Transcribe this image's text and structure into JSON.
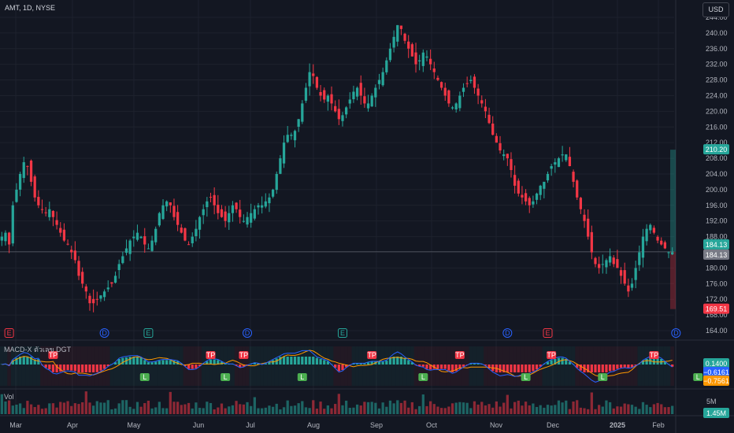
{
  "header": {
    "symbol_line": "AMT, 1D, NYSE",
    "currency": "USD"
  },
  "indicators": {
    "macd_label": "MACD-X ตัวเลข DGT",
    "volume_label": "Vol"
  },
  "colors": {
    "up": "#26a69a",
    "down": "#f23645",
    "bg": "#131722",
    "grid": "#1e222d",
    "macd": "#2962ff",
    "signal": "#ff9800"
  },
  "chart_data": {
    "type": "candlestick",
    "title": "",
    "price_axis": {
      "ylim": [
        164,
        246
      ],
      "ticks": [
        "244.00",
        "240.00",
        "236.00",
        "232.00",
        "228.00",
        "224.00",
        "220.00",
        "216.00",
        "212.00",
        "208.00",
        "204.00",
        "200.00",
        "196.00",
        "192.00",
        "188.00",
        "184.00",
        "180.00",
        "176.00",
        "172.00",
        "168.00",
        "164.00"
      ]
    },
    "x_ticks": [
      "Mar",
      "Apr",
      "May",
      "Jun",
      "Jul",
      "Aug",
      "Sep",
      "Oct",
      "Nov",
      "Dec",
      "2025",
      "Feb"
    ],
    "price_labels": [
      {
        "value": 210.2,
        "text": "210.20",
        "color": "#26a69a"
      },
      {
        "value": 184.13,
        "text": "184.13",
        "color": "#26a69a"
      },
      {
        "value": 184.13,
        "text": "184.13",
        "color": "#787b86"
      },
      {
        "value": 169.51,
        "text": "169.51",
        "color": "#f23645"
      }
    ],
    "position_box": {
      "entry": 184.13,
      "target": 210.2,
      "stop": 169.51
    },
    "close_path": [
      188,
      189,
      186,
      196,
      200,
      204,
      207,
      206,
      202,
      198,
      196,
      195,
      194,
      195,
      193,
      191,
      189,
      187,
      186,
      184,
      182,
      178,
      176,
      174,
      171,
      171,
      172,
      173,
      174,
      175,
      176,
      178,
      181,
      183,
      185,
      187,
      188,
      189,
      188,
      186,
      185,
      187,
      190,
      194,
      196,
      197,
      196,
      193,
      191,
      189,
      187,
      186,
      188,
      190,
      193,
      195,
      197,
      198,
      196,
      194,
      193,
      192,
      194,
      196,
      195,
      193,
      192,
      193,
      194,
      195,
      196,
      196,
      197,
      198,
      200,
      204,
      208,
      212,
      214,
      214,
      215,
      218,
      222,
      226,
      230,
      229,
      226,
      224,
      223,
      224,
      222,
      220,
      218,
      219,
      221,
      223,
      225,
      226,
      224,
      222,
      222,
      224,
      226,
      228,
      230,
      233,
      236,
      239,
      242,
      241,
      238,
      236,
      234,
      232,
      233,
      235,
      234,
      232,
      230,
      228,
      226,
      224,
      222,
      221,
      222,
      224,
      226,
      227,
      228,
      226,
      224,
      222,
      220,
      217,
      214,
      212,
      210,
      209,
      208,
      205,
      201,
      199,
      198,
      197,
      196,
      197,
      199,
      201,
      202,
      204,
      206,
      207,
      208,
      209,
      209,
      206,
      202,
      198,
      195,
      192,
      188,
      184,
      181,
      180,
      181,
      182,
      183,
      181,
      180,
      178,
      176,
      174,
      176,
      180,
      184,
      188,
      190,
      191,
      189,
      187,
      186,
      185,
      184,
      184
    ],
    "volume_axis": {
      "ticks": [
        "5M"
      ],
      "last": "1.45M"
    },
    "macd_axis": {
      "labels": [
        {
          "text": "0.1400",
          "color": "#26a69a"
        },
        {
          "text": "−0.6161",
          "color": "#2962ff"
        },
        {
          "text": "−0.7561",
          "color": "#ff9800"
        }
      ]
    },
    "events": [
      {
        "kind": "E",
        "index": 2,
        "color": "#f23645"
      },
      {
        "kind": "D",
        "index": 28,
        "color": "#2962ff"
      },
      {
        "kind": "E",
        "index": 40,
        "color": "#26a69a"
      },
      {
        "kind": "D",
        "index": 67,
        "color": "#2962ff"
      },
      {
        "kind": "E",
        "index": 93,
        "color": "#26a69a"
      },
      {
        "kind": "D",
        "index": 138,
        "color": "#2962ff"
      },
      {
        "kind": "E",
        "index": 149,
        "color": "#f23645"
      },
      {
        "kind": "D",
        "index": 184,
        "color": "#2962ff"
      },
      {
        "kind": "⚡",
        "index": 206,
        "color": "#e040fb"
      }
    ],
    "macd_signals": [
      {
        "text": "TP",
        "index": 14,
        "side": "top"
      },
      {
        "text": "L",
        "index": 39,
        "side": "bottom"
      },
      {
        "text": "TP",
        "index": 57,
        "side": "top"
      },
      {
        "text": "L",
        "index": 61,
        "side": "bottom"
      },
      {
        "text": "TP",
        "index": 66,
        "side": "top"
      },
      {
        "text": "L",
        "index": 82,
        "side": "bottom"
      },
      {
        "text": "TP",
        "index": 101,
        "side": "top"
      },
      {
        "text": "L",
        "index": 115,
        "side": "bottom"
      },
      {
        "text": "TP",
        "index": 125,
        "side": "top"
      },
      {
        "text": "L",
        "index": 143,
        "side": "bottom"
      },
      {
        "text": "TP",
        "index": 150,
        "side": "top"
      },
      {
        "text": "L",
        "index": 164,
        "side": "bottom"
      },
      {
        "text": "TP",
        "index": 178,
        "side": "top"
      },
      {
        "text": "L",
        "index": 190,
        "side": "bottom"
      }
    ]
  }
}
